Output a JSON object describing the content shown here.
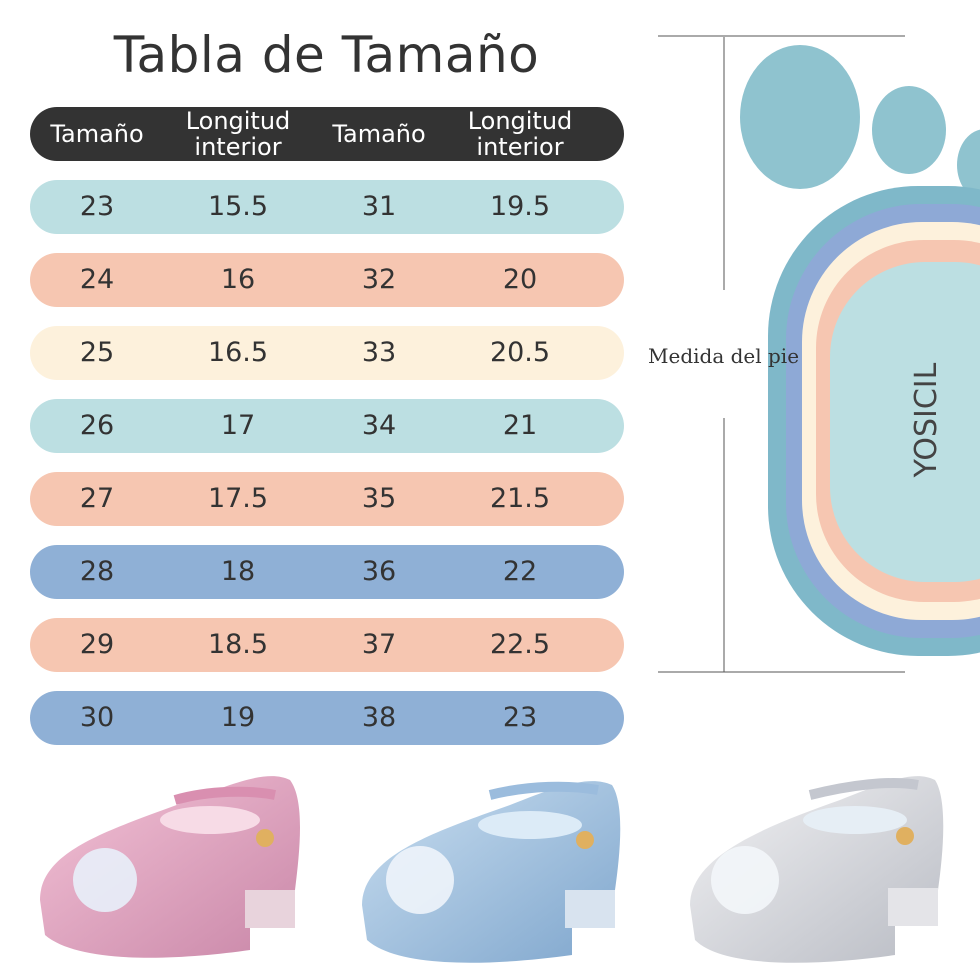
{
  "title": "Tabla de Tamaño",
  "table": {
    "header": [
      "Tamaño",
      "Longitud interior",
      "Tamaño",
      "Longitud interior"
    ],
    "rows": [
      {
        "cells": [
          "23",
          "15.5",
          "31",
          "19.5"
        ],
        "color": "#bcdfe2"
      },
      {
        "cells": [
          "24",
          "16",
          "32",
          "20"
        ],
        "color": "#f6c6b1"
      },
      {
        "cells": [
          "25",
          "16.5",
          "33",
          "20.5"
        ],
        "color": "#fdf1dc"
      },
      {
        "cells": [
          "26",
          "17",
          "34",
          "21"
        ],
        "color": "#bcdfe2"
      },
      {
        "cells": [
          "27",
          "17.5",
          "35",
          "21.5"
        ],
        "color": "#f6c6b1"
      },
      {
        "cells": [
          "28",
          "18",
          "36",
          "22"
        ],
        "color": "#8fb0d6"
      },
      {
        "cells": [
          "29",
          "18.5",
          "37",
          "22.5"
        ],
        "color": "#f6c6b1"
      },
      {
        "cells": [
          "30",
          "19",
          "38",
          "23"
        ],
        "color": "#8fb0d6"
      }
    ]
  },
  "foot": {
    "measure_label": "Medida del pie",
    "brand": "YOSICIL"
  }
}
